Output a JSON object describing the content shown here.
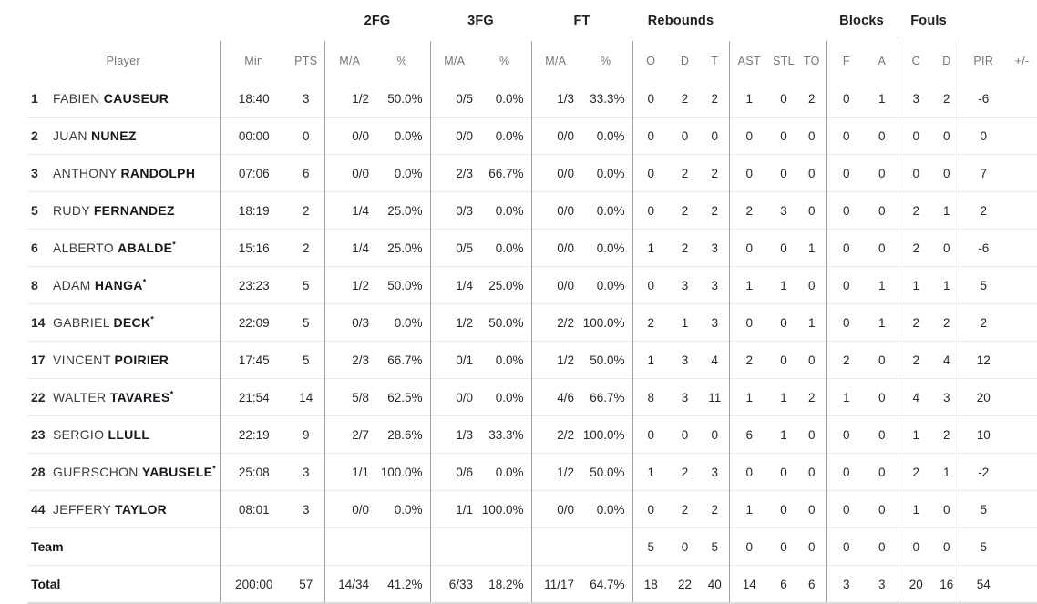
{
  "table": {
    "groups": {
      "fg2": "2FG",
      "fg3": "3FG",
      "ft": "FT",
      "rebounds": "Rebounds",
      "blocks": "Blocks",
      "fouls": "Fouls"
    },
    "columns": {
      "player": "Player",
      "min": "Min",
      "pts": "PTS",
      "ma": "M/A",
      "pct": "%",
      "o": "O",
      "d": "D",
      "t": "T",
      "ast": "AST",
      "stl": "STL",
      "to": "TO",
      "f": "F",
      "a": "A",
      "c": "C",
      "d2": "D",
      "pir": "PIR",
      "pm": "+/-"
    },
    "starter_marker": "*",
    "rows": [
      {
        "num": "1",
        "first": "FABIEN",
        "last": "CAUSEUR",
        "starter": false,
        "stats": [
          "18:40",
          "3",
          "1/2",
          "50.0%",
          "0/5",
          "0.0%",
          "1/3",
          "33.3%",
          "0",
          "2",
          "2",
          "1",
          "0",
          "2",
          "0",
          "1",
          "3",
          "2",
          "-6",
          ""
        ]
      },
      {
        "num": "2",
        "first": "JUAN",
        "last": "NUNEZ",
        "starter": false,
        "stats": [
          "00:00",
          "0",
          "0/0",
          "0.0%",
          "0/0",
          "0.0%",
          "0/0",
          "0.0%",
          "0",
          "0",
          "0",
          "0",
          "0",
          "0",
          "0",
          "0",
          "0",
          "0",
          "0",
          ""
        ]
      },
      {
        "num": "3",
        "first": "ANTHONY",
        "last": "RANDOLPH",
        "starter": false,
        "stats": [
          "07:06",
          "6",
          "0/0",
          "0.0%",
          "2/3",
          "66.7%",
          "0/0",
          "0.0%",
          "0",
          "2",
          "2",
          "0",
          "0",
          "0",
          "0",
          "0",
          "0",
          "0",
          "7",
          ""
        ]
      },
      {
        "num": "5",
        "first": "RUDY",
        "last": "FERNANDEZ",
        "starter": false,
        "stats": [
          "18:19",
          "2",
          "1/4",
          "25.0%",
          "0/3",
          "0.0%",
          "0/0",
          "0.0%",
          "0",
          "2",
          "2",
          "2",
          "3",
          "0",
          "0",
          "0",
          "2",
          "1",
          "2",
          ""
        ]
      },
      {
        "num": "6",
        "first": "ALBERTO",
        "last": "ABALDE",
        "starter": true,
        "stats": [
          "15:16",
          "2",
          "1/4",
          "25.0%",
          "0/5",
          "0.0%",
          "0/0",
          "0.0%",
          "1",
          "2",
          "3",
          "0",
          "0",
          "1",
          "0",
          "0",
          "2",
          "0",
          "-6",
          ""
        ]
      },
      {
        "num": "8",
        "first": "ADAM",
        "last": "HANGA",
        "starter": true,
        "stats": [
          "23:23",
          "5",
          "1/2",
          "50.0%",
          "1/4",
          "25.0%",
          "0/0",
          "0.0%",
          "0",
          "3",
          "3",
          "1",
          "1",
          "0",
          "0",
          "1",
          "1",
          "1",
          "5",
          ""
        ]
      },
      {
        "num": "14",
        "first": "GABRIEL",
        "last": "DECK",
        "starter": true,
        "stats": [
          "22:09",
          "5",
          "0/3",
          "0.0%",
          "1/2",
          "50.0%",
          "2/2",
          "100.0%",
          "2",
          "1",
          "3",
          "0",
          "0",
          "1",
          "0",
          "1",
          "2",
          "2",
          "2",
          ""
        ]
      },
      {
        "num": "17",
        "first": "VINCENT",
        "last": "POIRIER",
        "starter": false,
        "stats": [
          "17:45",
          "5",
          "2/3",
          "66.7%",
          "0/1",
          "0.0%",
          "1/2",
          "50.0%",
          "1",
          "3",
          "4",
          "2",
          "0",
          "0",
          "2",
          "0",
          "2",
          "4",
          "12",
          ""
        ]
      },
      {
        "num": "22",
        "first": "WALTER",
        "last": "TAVARES",
        "starter": true,
        "stats": [
          "21:54",
          "14",
          "5/8",
          "62.5%",
          "0/0",
          "0.0%",
          "4/6",
          "66.7%",
          "8",
          "3",
          "11",
          "1",
          "1",
          "2",
          "1",
          "0",
          "4",
          "3",
          "20",
          ""
        ]
      },
      {
        "num": "23",
        "first": "SERGIO",
        "last": "LLULL",
        "starter": false,
        "stats": [
          "22:19",
          "9",
          "2/7",
          "28.6%",
          "1/3",
          "33.3%",
          "2/2",
          "100.0%",
          "0",
          "0",
          "0",
          "6",
          "1",
          "0",
          "0",
          "0",
          "1",
          "2",
          "10",
          ""
        ]
      },
      {
        "num": "28",
        "first": "GUERSCHON",
        "last": "YABUSELE",
        "starter": true,
        "stats": [
          "25:08",
          "3",
          "1/1",
          "100.0%",
          "0/6",
          "0.0%",
          "1/2",
          "50.0%",
          "1",
          "2",
          "3",
          "0",
          "0",
          "0",
          "0",
          "0",
          "2",
          "1",
          "-2",
          ""
        ]
      },
      {
        "num": "44",
        "first": "JEFFERY",
        "last": "TAYLOR",
        "starter": false,
        "stats": [
          "08:01",
          "3",
          "0/0",
          "0.0%",
          "1/1",
          "100.0%",
          "0/0",
          "0.0%",
          "0",
          "2",
          "2",
          "1",
          "0",
          "0",
          "0",
          "0",
          "1",
          "0",
          "5",
          ""
        ]
      },
      {
        "type": "team",
        "label": "Team",
        "stats": [
          "",
          "",
          "",
          "",
          "",
          "",
          "",
          "",
          "5",
          "0",
          "5",
          "0",
          "0",
          "0",
          "0",
          "0",
          "0",
          "0",
          "5",
          ""
        ]
      },
      {
        "type": "total",
        "label": "Total",
        "stats": [
          "200:00",
          "57",
          "14/34",
          "41.2%",
          "6/33",
          "18.2%",
          "11/17",
          "64.7%",
          "18",
          "22",
          "40",
          "14",
          "6",
          "6",
          "3",
          "3",
          "20",
          "16",
          "54",
          ""
        ]
      }
    ]
  },
  "colors": {
    "background": "#ffffff",
    "data_text": "#26262e",
    "header_text": "#73757a",
    "group_header_text": "#1d1d25",
    "column_divider": "#a0a0a4",
    "row_separator": "#ebebed",
    "bottom_border": "#d9d9db"
  }
}
